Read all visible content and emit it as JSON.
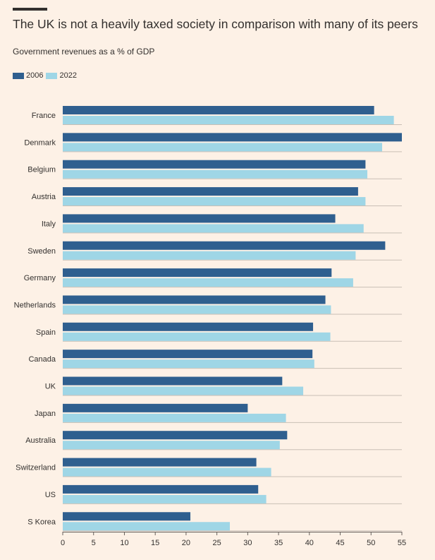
{
  "header": {
    "title": "The UK is not a heavily taxed society in comparison with many of its peers",
    "subtitle": "Government revenues as a % of GDP"
  },
  "colors": {
    "background": "#fdf1e6",
    "series_2006": "#2f5f8f",
    "series_2022": "#9fd6e6",
    "gridline": "#c9bfb5",
    "text": "#33302e"
  },
  "chart_data": {
    "type": "bar",
    "orientation": "horizontal",
    "title": "The UK is not a heavily taxed society in comparison with many of its peers",
    "subtitle": "Government revenues as a % of GDP",
    "categories": [
      "France",
      "Denmark",
      "Belgium",
      "Austria",
      "Italy",
      "Sweden",
      "Germany",
      "Netherlands",
      "Spain",
      "Canada",
      "UK",
      "Japan",
      "Australia",
      "Switzerland",
      "US",
      "S Korea"
    ],
    "series": [
      {
        "name": "2006",
        "values": [
          50.5,
          55.0,
          49.1,
          47.9,
          44.2,
          52.3,
          43.6,
          42.6,
          40.6,
          40.5,
          35.6,
          30.0,
          36.4,
          31.4,
          31.7,
          20.7
        ]
      },
      {
        "name": "2022",
        "values": [
          53.7,
          51.8,
          49.4,
          49.1,
          48.8,
          47.5,
          47.1,
          43.5,
          43.4,
          40.8,
          39.0,
          36.2,
          35.2,
          33.8,
          33.0,
          27.1
        ]
      }
    ],
    "xlim": [
      0,
      55
    ],
    "xticks": [
      0,
      5,
      10,
      15,
      20,
      25,
      30,
      35,
      40,
      45,
      50,
      55
    ],
    "grid": true,
    "legend_position": "top-left"
  }
}
